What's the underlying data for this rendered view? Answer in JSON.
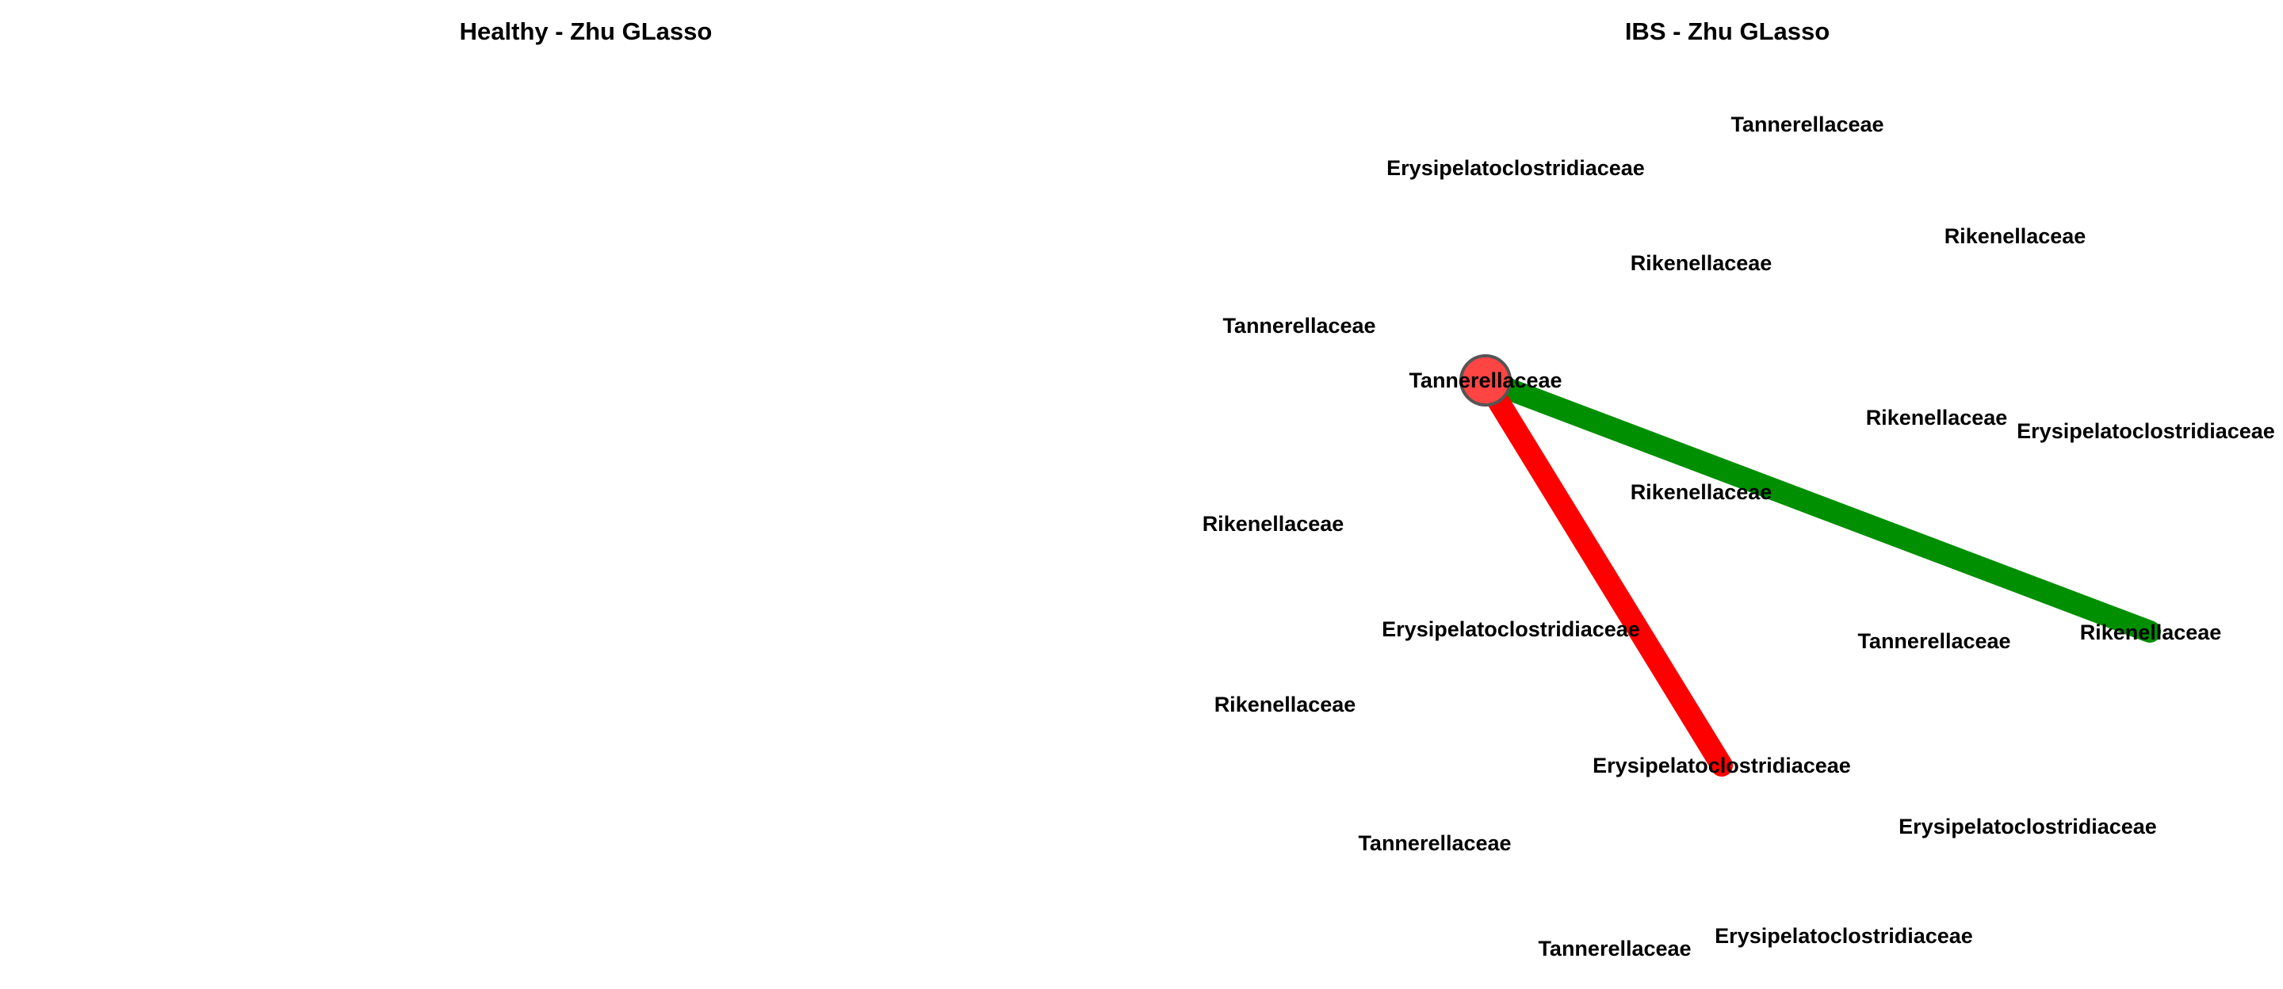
{
  "panels": [
    {
      "title": "Healthy - Zhu GLasso",
      "nodes": [],
      "edges": []
    },
    {
      "title": "IBS - Zhu GLasso",
      "nodes": [
        {
          "id": "n1",
          "label": "Tannerellaceae",
          "highlighted": false
        },
        {
          "id": "n2",
          "label": "Erysipelatoclostridiaceae",
          "highlighted": false
        },
        {
          "id": "n3",
          "label": "Rikenellaceae",
          "highlighted": false
        },
        {
          "id": "n4",
          "label": "Rikenellaceae",
          "highlighted": false
        },
        {
          "id": "n5",
          "label": "Tannerellaceae",
          "highlighted": false
        },
        {
          "id": "n6",
          "label": "Tannerellaceae",
          "highlighted": true
        },
        {
          "id": "n7",
          "label": "Rikenellaceae",
          "highlighted": false
        },
        {
          "id": "n8",
          "label": "Erysipelatoclostridiaceae",
          "highlighted": false
        },
        {
          "id": "n9",
          "label": "Rikenellaceae",
          "highlighted": false
        },
        {
          "id": "n10",
          "label": "Rikenellaceae",
          "highlighted": false
        },
        {
          "id": "n11",
          "label": "Erysipelatoclostridiaceae",
          "highlighted": false
        },
        {
          "id": "n12",
          "label": "Tannerellaceae",
          "highlighted": false
        },
        {
          "id": "n13",
          "label": "Rikenellaceae",
          "highlighted": false
        },
        {
          "id": "n14",
          "label": "Rikenellaceae",
          "highlighted": false
        },
        {
          "id": "n15",
          "label": "Erysipelatoclostridiaceae",
          "highlighted": false
        },
        {
          "id": "n16",
          "label": "Erysipelatoclostridiaceae",
          "highlighted": false
        },
        {
          "id": "n17",
          "label": "Tannerellaceae",
          "highlighted": false
        },
        {
          "id": "n18",
          "label": "Erysipelatoclostridiaceae",
          "highlighted": false
        },
        {
          "id": "n19",
          "label": "Tannerellaceae",
          "highlighted": false
        }
      ],
      "edges": [
        {
          "source": "n6",
          "target": "n14",
          "sign": "positive"
        },
        {
          "source": "n6",
          "target": "n15",
          "sign": "negative"
        }
      ]
    }
  ],
  "colors": {
    "positive_edge": "#008f00",
    "negative_edge": "#ff0000",
    "node_fill": "#ff4444",
    "node_stroke": "#555555",
    "text": "#000000"
  }
}
